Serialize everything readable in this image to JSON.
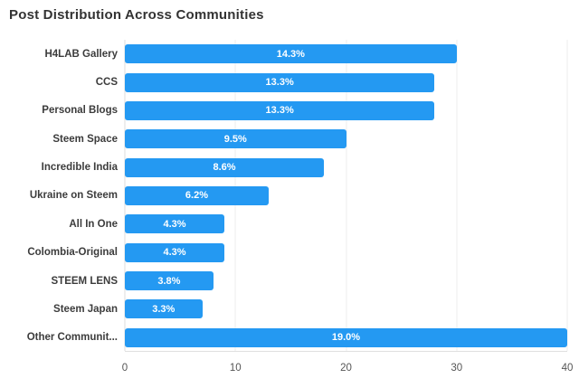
{
  "chart_data": {
    "type": "bar",
    "orientation": "horizontal",
    "title": "Post Distribution Across Communities",
    "categories": [
      "H4LAB Gallery",
      "CCS",
      "Personal Blogs",
      "Steem Space",
      "Incredible India",
      "Ukraine on Steem",
      "All In One",
      "Colombia-Original",
      "STEEM LENS",
      "Steem Japan",
      "Other Communit..."
    ],
    "values": [
      30,
      28,
      28,
      20,
      18,
      13,
      9,
      9,
      8,
      7,
      40
    ],
    "value_labels": [
      "14.3%",
      "13.3%",
      "13.3%",
      "9.5%",
      "8.6%",
      "6.2%",
      "4.3%",
      "4.3%",
      "3.8%",
      "3.3%",
      "19.0%"
    ],
    "x_ticks": [
      0,
      10,
      20,
      30,
      40
    ],
    "xlim": [
      0,
      40
    ],
    "xlabel": "",
    "ylabel": "",
    "grid": true,
    "legend": false,
    "bar_color": "#2499f2",
    "title_color": "#333333",
    "label_color": "#3c3c3c"
  }
}
